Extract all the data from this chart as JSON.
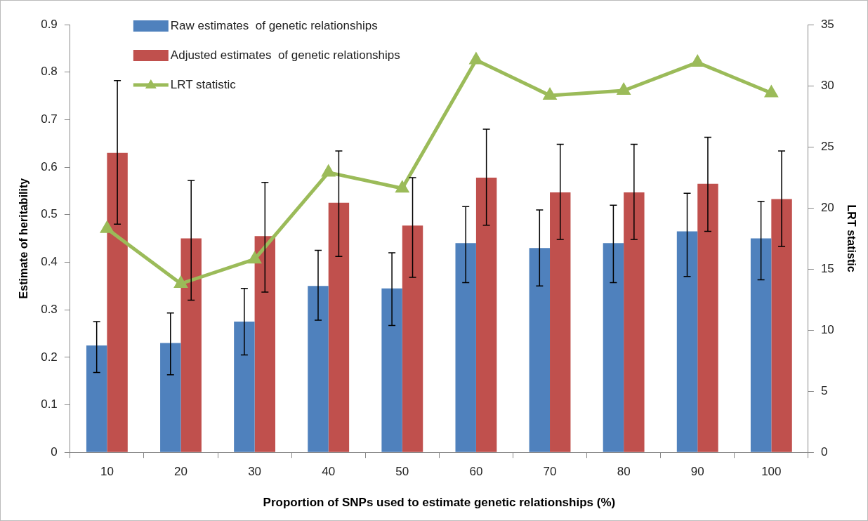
{
  "chart_data": {
    "type": "bar",
    "xlabel": "Proportion of SNPs used to estimate genetic relationships (%)",
    "ylabel": "Estimate of heritability",
    "y2label": "LRT statistic",
    "categories": [
      "10",
      "20",
      "30",
      "40",
      "50",
      "60",
      "70",
      "80",
      "90",
      "100"
    ],
    "series": [
      {
        "name": "Raw estimates  of genetic relationships",
        "color": "#4f81bd",
        "values": [
          0.225,
          0.23,
          0.275,
          0.35,
          0.345,
          0.44,
          0.43,
          0.44,
          0.465,
          0.45
        ],
        "errors": [
          [
            0.168,
            0.275
          ],
          [
            0.163,
            0.293
          ],
          [
            0.205,
            0.345
          ],
          [
            0.278,
            0.425
          ],
          [
            0.267,
            0.42
          ],
          [
            0.357,
            0.517
          ],
          [
            0.35,
            0.51
          ],
          [
            0.357,
            0.52
          ],
          [
            0.37,
            0.545
          ],
          [
            0.363,
            0.528
          ]
        ]
      },
      {
        "name": "Adjusted estimates  of genetic relationships",
        "color": "#c0504d",
        "values": [
          0.63,
          0.45,
          0.455,
          0.525,
          0.477,
          0.578,
          0.547,
          0.547,
          0.565,
          0.533
        ],
        "errors": [
          [
            0.48,
            0.782
          ],
          [
            0.32,
            0.572
          ],
          [
            0.337,
            0.568
          ],
          [
            0.412,
            0.634
          ],
          [
            0.368,
            0.578
          ],
          [
            0.478,
            0.68
          ],
          [
            0.448,
            0.648
          ],
          [
            0.448,
            0.648
          ],
          [
            0.465,
            0.663
          ],
          [
            0.433,
            0.634
          ]
        ]
      },
      {
        "name": "LRT statistic",
        "type": "line",
        "axis": "y2",
        "color": "#9bbb59",
        "marker": "triangle",
        "values": [
          18.3,
          13.8,
          15.8,
          22.9,
          21.6,
          32.1,
          29.2,
          29.6,
          31.9,
          29.4
        ]
      }
    ],
    "ylim": [
      0,
      0.9
    ],
    "yticks": [
      0,
      0.1,
      0.2,
      0.3,
      0.4,
      0.5,
      0.6,
      0.7,
      0.8,
      0.9
    ],
    "y2lim": [
      0,
      35
    ],
    "y2ticks": [
      0,
      5,
      10,
      15,
      20,
      25,
      30,
      35
    ],
    "grid": false,
    "legend": "top left"
  }
}
